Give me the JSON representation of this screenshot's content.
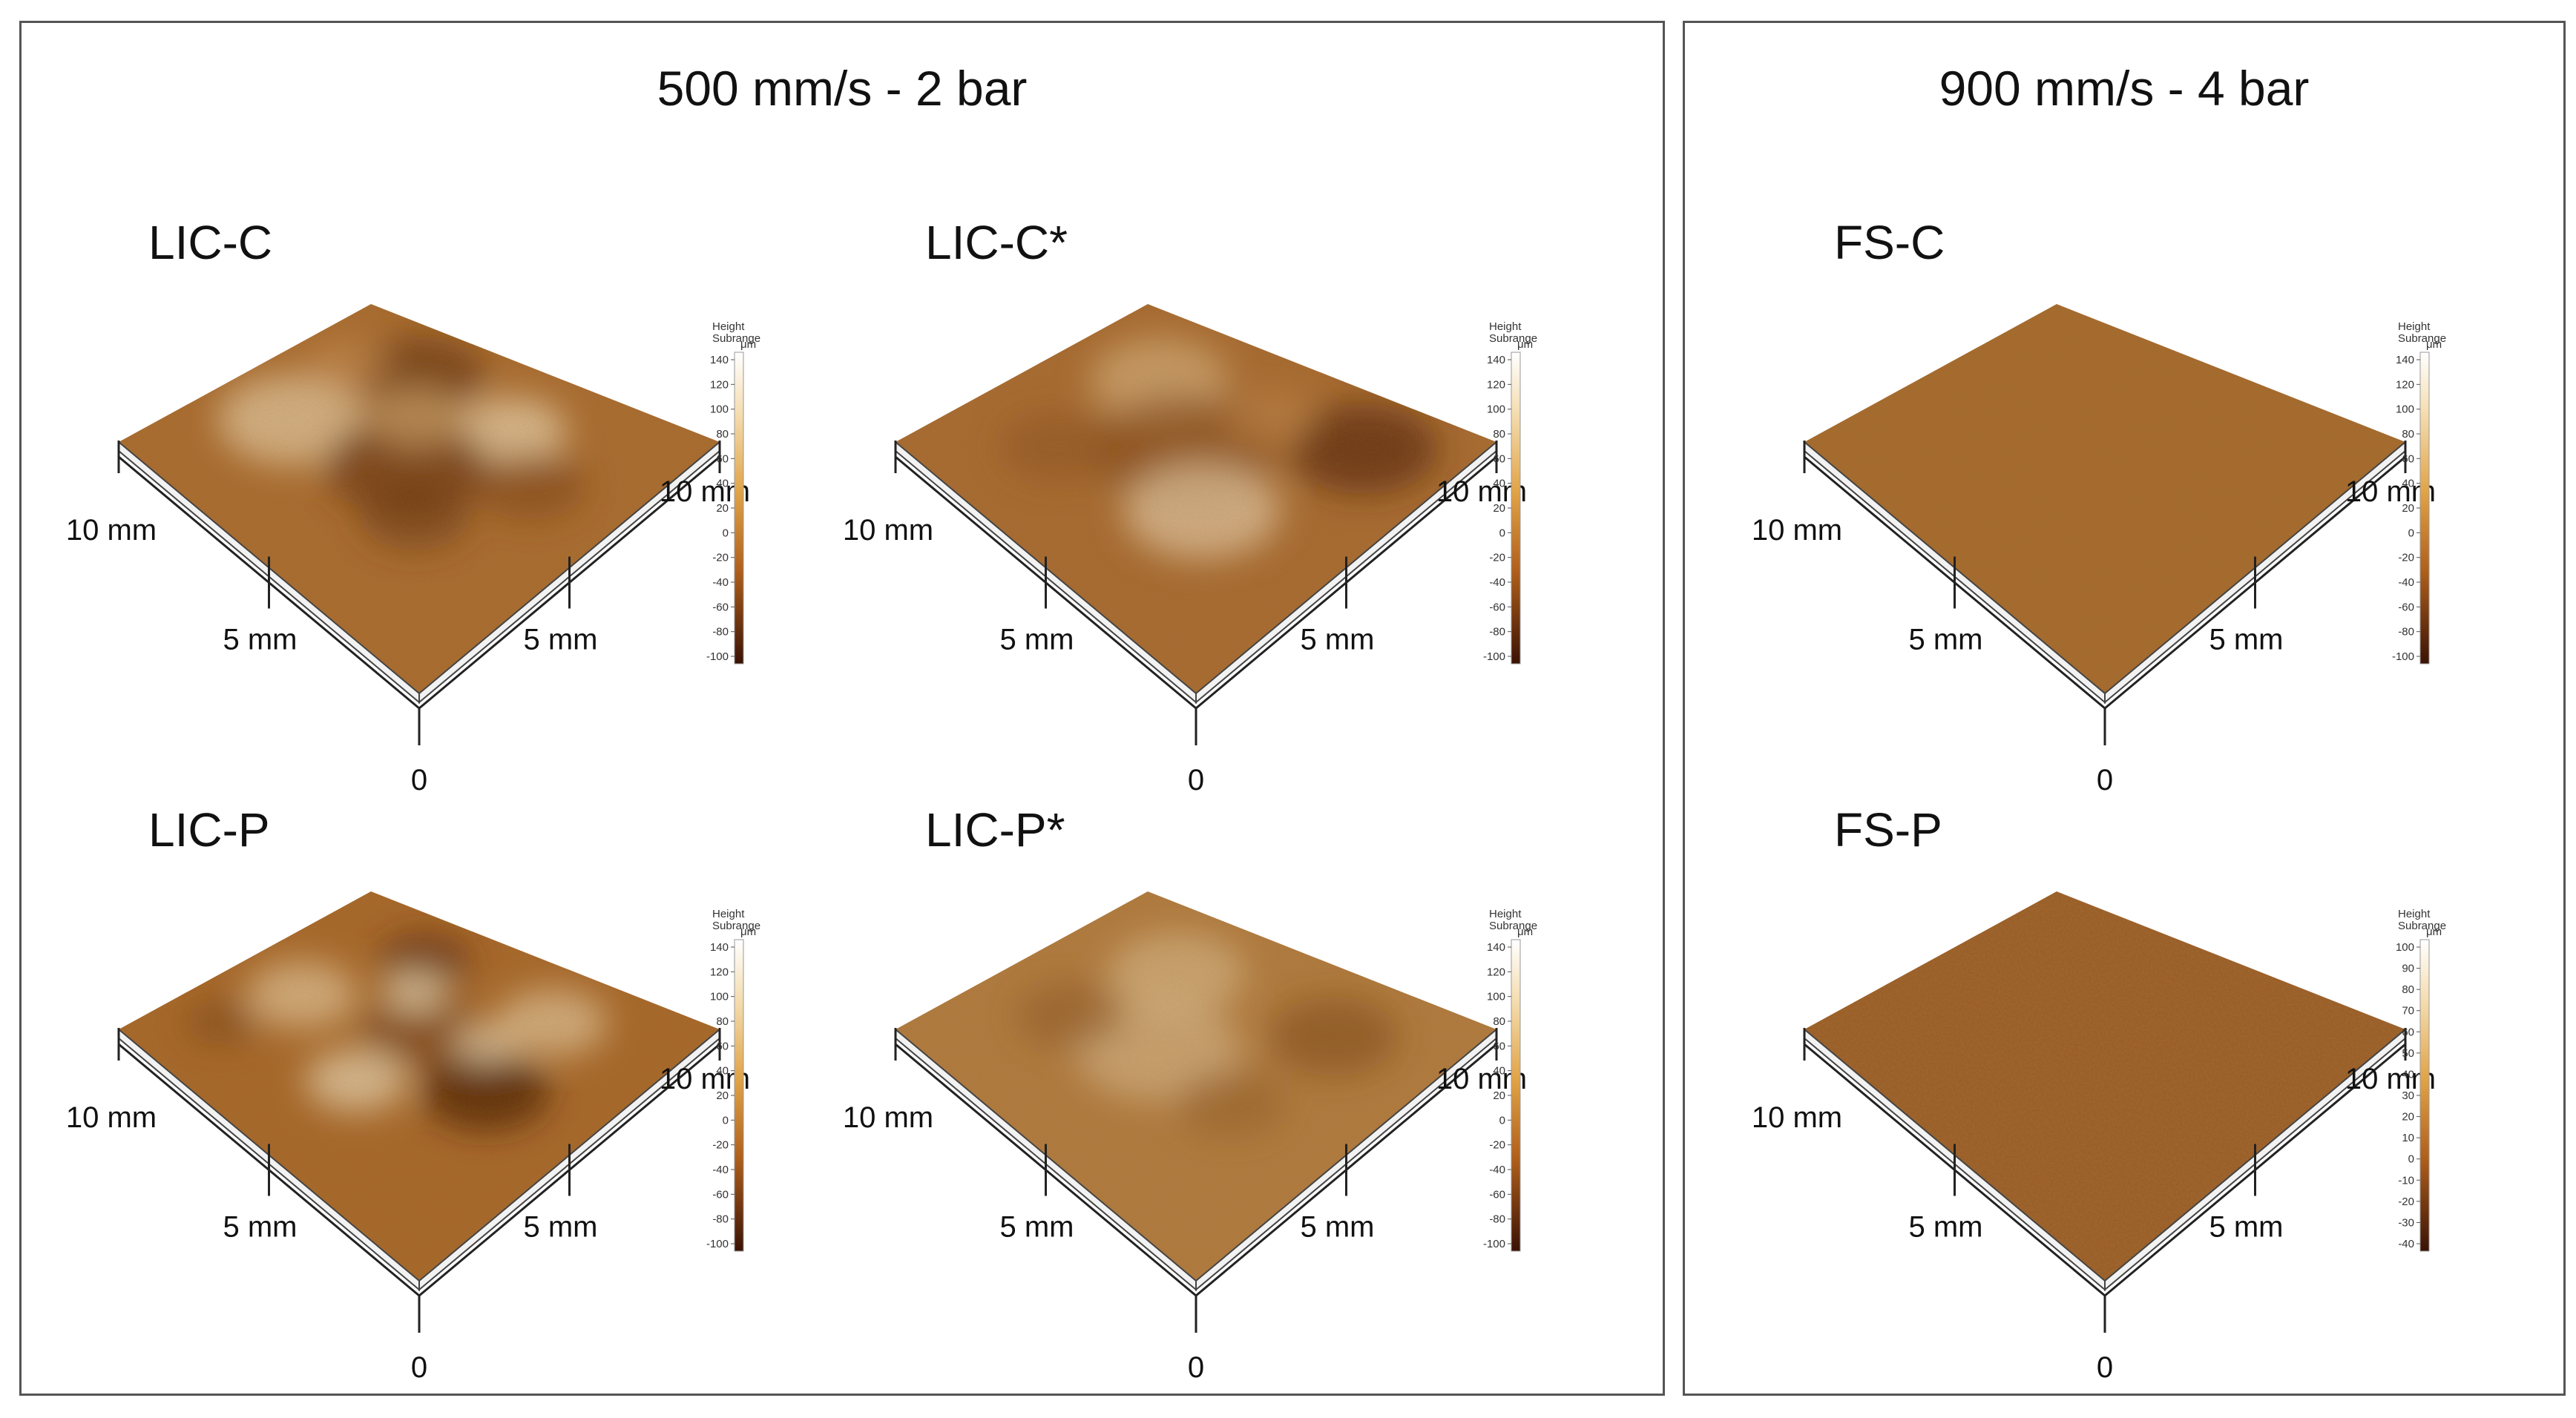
{
  "groups": [
    {
      "title": "500 mm/s - 2 bar",
      "samples": [
        {
          "label": "LIC-C",
          "scheme": "rough-a"
        },
        {
          "label": "LIC-C*",
          "scheme": "rough-b"
        },
        {
          "label": "LIC-P",
          "scheme": "rough-c"
        },
        {
          "label": "LIC-P*",
          "scheme": "rough-d"
        }
      ]
    },
    {
      "title": "900 mm/s - 4 bar",
      "samples": [
        {
          "label": "FS-C",
          "scheme": "flat"
        },
        {
          "label": "FS-P",
          "scheme": "flat-textured"
        }
      ]
    }
  ],
  "axes": {
    "origin_label": "0",
    "mid_label": "5 mm",
    "end_label": "10 mm"
  },
  "colorbar": {
    "title_line1": "Height",
    "title_line2": "Subrange",
    "unit": "μm",
    "ticks_standard": [
      "140",
      "120",
      "100",
      "80",
      "60",
      "40",
      "20",
      "0",
      "-20",
      "-40",
      "-60",
      "-80",
      "-100"
    ],
    "ticks_fsp": [
      "100",
      "90",
      "80",
      "70",
      "60",
      "50",
      "40",
      "30",
      "20",
      "10",
      "0",
      "-10",
      "-20",
      "-30",
      "-40"
    ]
  },
  "colors": {
    "surface_dark": "#6e3a12",
    "surface_mid": "#a8682c",
    "surface_light": "#e6cfa6",
    "frame_border": "#555555"
  }
}
